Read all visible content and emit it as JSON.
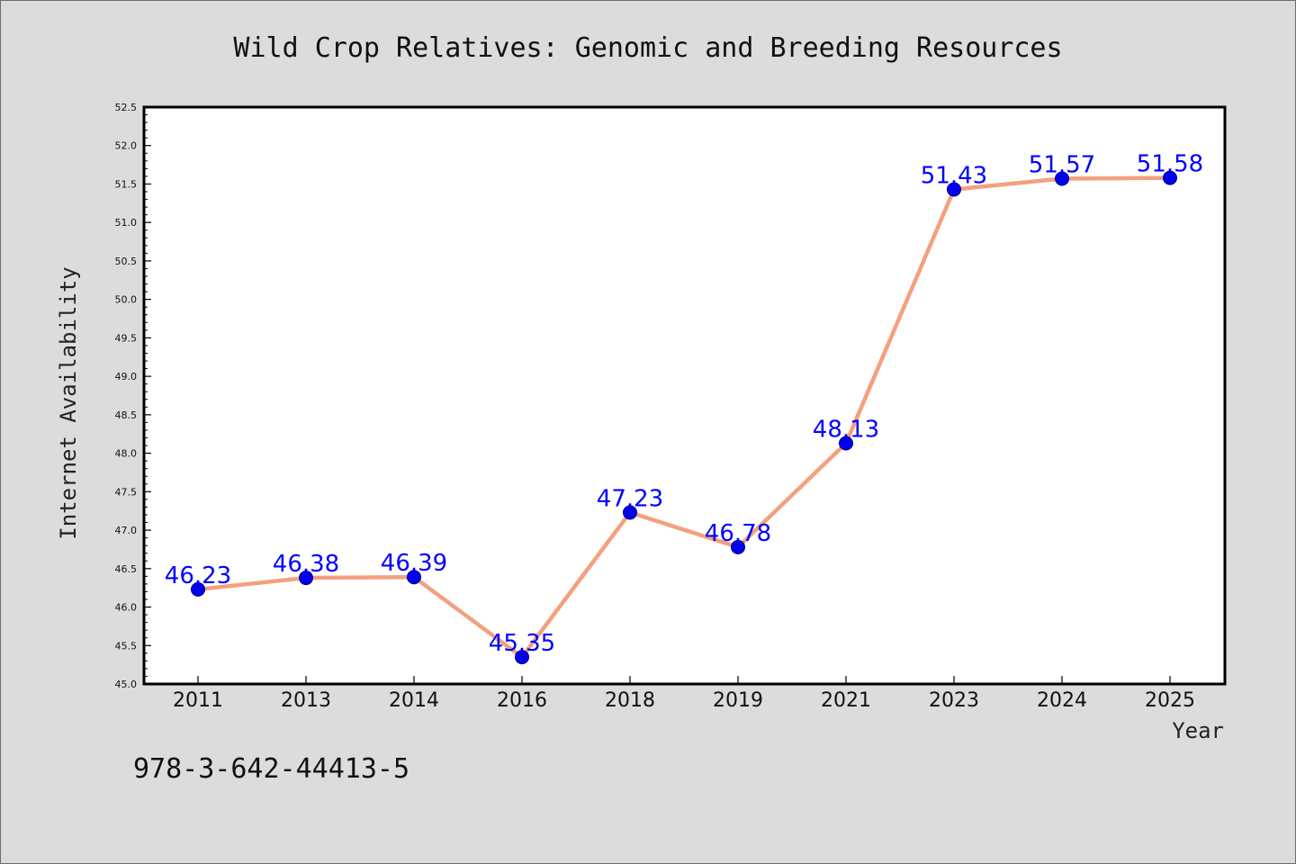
{
  "chart_data": {
    "type": "line",
    "title": "Wild Crop Relatives: Genomic and Breeding Resources",
    "xlabel": "Year",
    "ylabel": "Internet Availability",
    "categories": [
      "2011",
      "2013",
      "2014",
      "2016",
      "2018",
      "2019",
      "2021",
      "2023",
      "2024",
      "2025"
    ],
    "series": [
      {
        "values": [
          46.23,
          46.38,
          46.39,
          45.35,
          47.23,
          46.78,
          48.13,
          51.43,
          51.57,
          51.58
        ],
        "labels": [
          "46.23",
          "46.38",
          "46.39",
          "45.35",
          "47.23",
          "46.78",
          "48.13",
          "51.43",
          "51.57",
          "51.58"
        ]
      }
    ],
    "ylim": [
      45.0,
      52.5
    ],
    "yticks": [
      "45.0",
      "45.5",
      "46.0",
      "46.5",
      "47.0",
      "47.5",
      "48.0",
      "48.5",
      "49.0",
      "49.5",
      "50.0",
      "50.5",
      "51.0",
      "51.5",
      "52.0",
      "52.5"
    ],
    "grid": false,
    "colors": {
      "line": "#f4a07e",
      "marker": "#0000ee",
      "label": "#0000ff",
      "plot_background": "#ffffff",
      "figure_background": "#dcdcdc"
    }
  },
  "footer": {
    "isbn": "978-3-642-44413-5"
  }
}
